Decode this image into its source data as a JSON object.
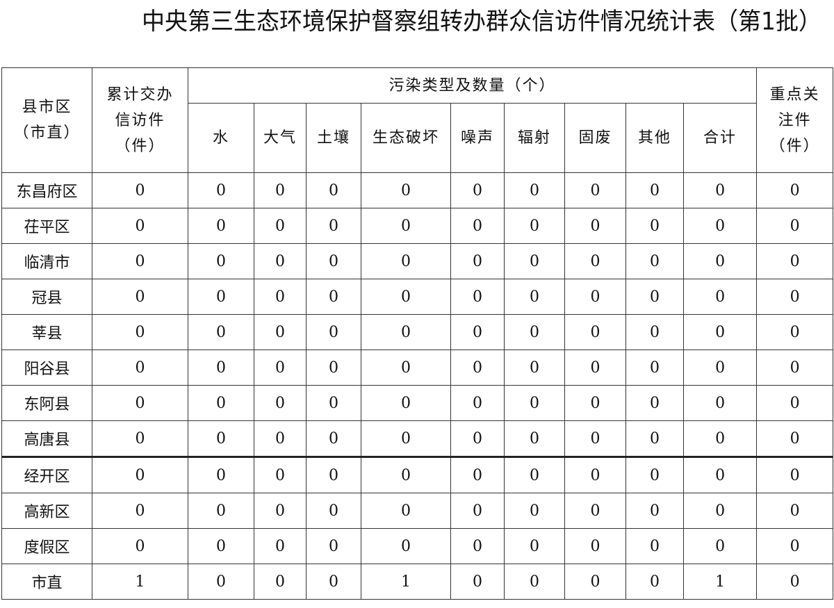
{
  "title": "中央第三生态环境保护督察组转办群众信访件情况统计表（第1批）",
  "headers": {
    "region": "县市区（市直）",
    "region_l1": "县市区",
    "region_l2": "（市直）",
    "cumulative_l1": "累计交办",
    "cumulative_l2": "信访件",
    "cumulative_l3": "（件）",
    "pollution_group": "污染类型及数量（个）",
    "types": [
      "水",
      "大气",
      "土壤",
      "生态破坏",
      "噪声",
      "辐射",
      "固废",
      "其他",
      "合计"
    ],
    "key_l1": "重点关",
    "key_l2": "注件",
    "key_l3": "（件）"
  },
  "rows": [
    {
      "region": "东昌府区",
      "values": [
        "0",
        "0",
        "0",
        "0",
        "0",
        "0",
        "0",
        "0",
        "0",
        "0",
        "0"
      ]
    },
    {
      "region": "茌平区",
      "values": [
        "0",
        "0",
        "0",
        "0",
        "0",
        "0",
        "0",
        "0",
        "0",
        "0",
        "0"
      ]
    },
    {
      "region": "临清市",
      "values": [
        "0",
        "0",
        "0",
        "0",
        "0",
        "0",
        "0",
        "0",
        "0",
        "0",
        "0"
      ]
    },
    {
      "region": "冠县",
      "values": [
        "0",
        "0",
        "0",
        "0",
        "0",
        "0",
        "0",
        "0",
        "0",
        "0",
        "0"
      ]
    },
    {
      "region": "莘县",
      "values": [
        "0",
        "0",
        "0",
        "0",
        "0",
        "0",
        "0",
        "0",
        "0",
        "0",
        "0"
      ]
    },
    {
      "region": "阳谷县",
      "values": [
        "0",
        "0",
        "0",
        "0",
        "0",
        "0",
        "0",
        "0",
        "0",
        "0",
        "0"
      ]
    },
    {
      "region": "东阿县",
      "values": [
        "0",
        "0",
        "0",
        "0",
        "0",
        "0",
        "0",
        "0",
        "0",
        "0",
        "0"
      ]
    },
    {
      "region": "高唐县",
      "values": [
        "0",
        "0",
        "0",
        "0",
        "0",
        "0",
        "0",
        "0",
        "0",
        "0",
        "0"
      ]
    },
    {
      "region": "经开区",
      "values": [
        "0",
        "0",
        "0",
        "0",
        "0",
        "0",
        "0",
        "0",
        "0",
        "0",
        "0"
      ]
    },
    {
      "region": "高新区",
      "values": [
        "0",
        "0",
        "0",
        "0",
        "0",
        "0",
        "0",
        "0",
        "0",
        "0",
        "0"
      ]
    },
    {
      "region": "度假区",
      "values": [
        "0",
        "0",
        "0",
        "0",
        "0",
        "0",
        "0",
        "0",
        "0",
        "0",
        "0"
      ]
    },
    {
      "region": "市直",
      "values": [
        "1",
        "0",
        "0",
        "0",
        "1",
        "0",
        "0",
        "0",
        "0",
        "1",
        "0"
      ]
    }
  ]
}
